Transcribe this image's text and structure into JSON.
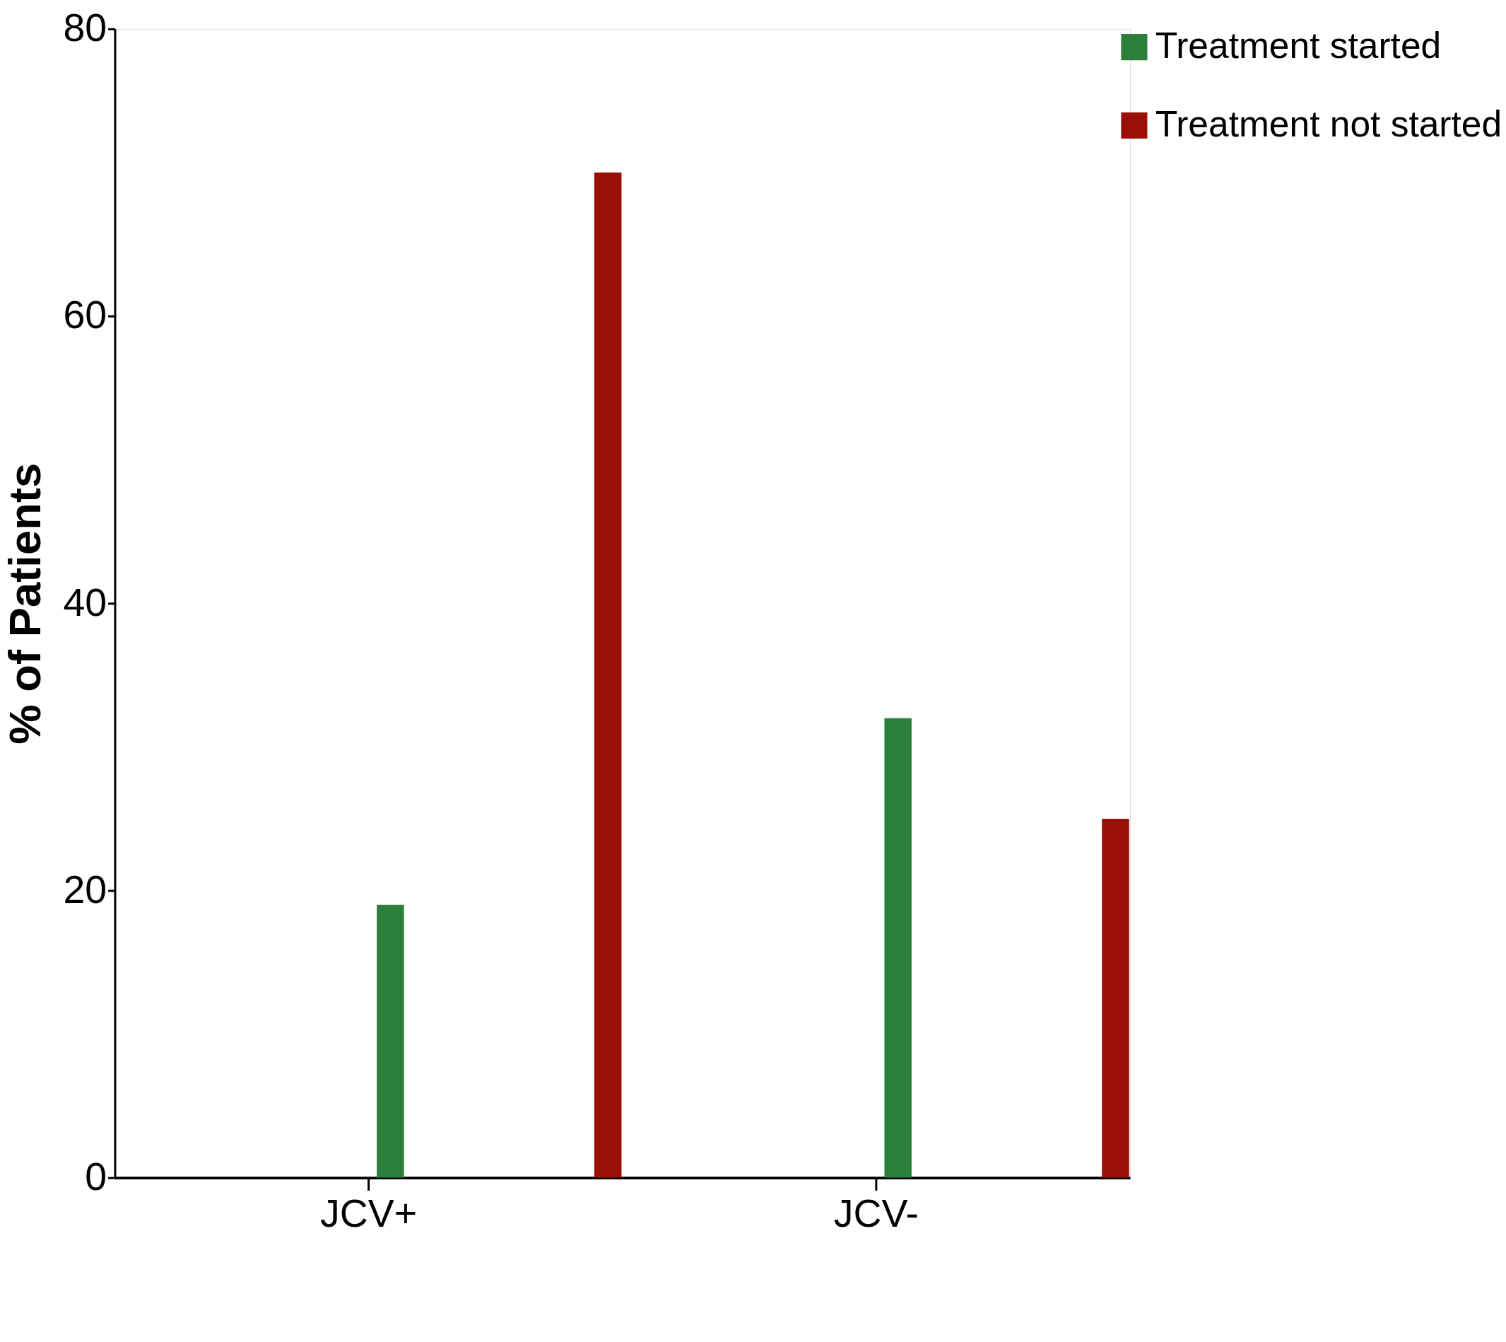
{
  "chart_data": {
    "type": "bar",
    "ylabel": "% of Patients",
    "categories": [
      "JCV+",
      "JCV-"
    ],
    "series": [
      {
        "name": "Treatment started",
        "color": "#2a7f3a",
        "values": [
          19,
          32
        ]
      },
      {
        "name": "Treatment not started",
        "color": "#9b1006",
        "values": [
          70,
          25
        ]
      }
    ],
    "ylim": [
      0,
      80
    ],
    "yticks": [
      0,
      20,
      40,
      60,
      80
    ],
    "grid": false,
    "legend": "right"
  }
}
